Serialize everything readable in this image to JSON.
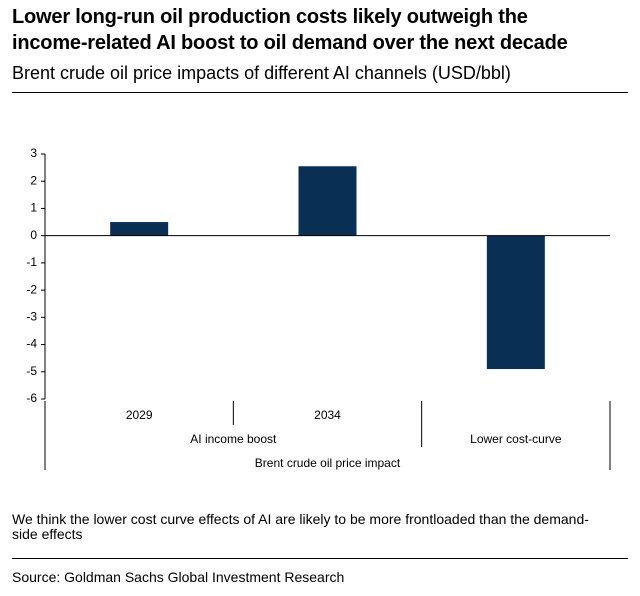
{
  "header": {
    "title_line1": "Lower long-run oil production costs likely outweigh the",
    "title_line2": "income-related AI boost to oil demand over the next decade",
    "subtitle": "Brent crude oil price impacts of different AI channels (USD/bbl)"
  },
  "chart_data": {
    "type": "bar",
    "title": "Brent crude oil price impacts of different AI channels (USD/bbl)",
    "categories": [
      "2029",
      "2034",
      "Lower cost-curve"
    ],
    "groups": [
      {
        "label": "AI income boost",
        "categories": [
          "2029",
          "2034"
        ]
      },
      {
        "label": "Lower cost-curve",
        "categories": [
          "Lower cost-curve"
        ]
      }
    ],
    "xlabel": "Brent crude oil price impact",
    "ylabel": "",
    "values": [
      0.5,
      2.55,
      -4.9
    ],
    "ylim": [
      -6,
      3
    ],
    "yticks": [
      3,
      2,
      1,
      0,
      -1,
      -2,
      -3,
      -4,
      -5,
      -6
    ],
    "ytick_labels": [
      "3",
      "2",
      "1",
      "0",
      "-1",
      "-2",
      "-3",
      "-4",
      "-5",
      "-6"
    ],
    "grid": false,
    "bar_color": "#0a2f55"
  },
  "footnote": "We think the lower cost curve effects of AI are likely to be more frontloaded than the demand-side effects",
  "source": "Source: Goldman Sachs Global Investment Research"
}
